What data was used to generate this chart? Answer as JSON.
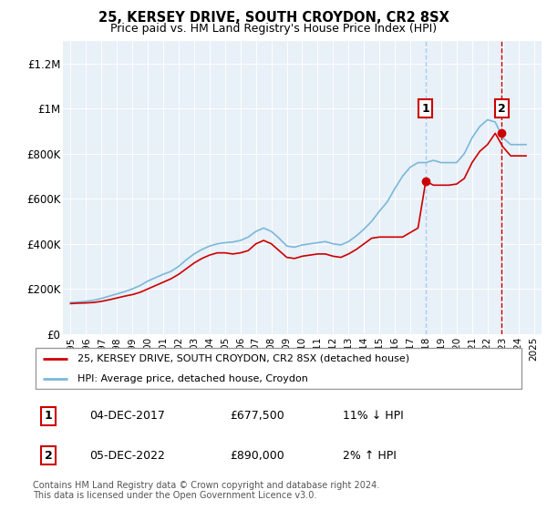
{
  "title": "25, KERSEY DRIVE, SOUTH CROYDON, CR2 8SX",
  "subtitle": "Price paid vs. HM Land Registry's House Price Index (HPI)",
  "hpi_line_color": "#7ab8d9",
  "price_line_color": "#cc0000",
  "vline1_color": "#aaccee",
  "vline2_color": "#cc0000",
  "bg_color": "#e8f0f8",
  "ylim": [
    0,
    1300000
  ],
  "yticks": [
    0,
    200000,
    400000,
    600000,
    800000,
    1000000,
    1200000
  ],
  "ytick_labels": [
    "£0",
    "£200K",
    "£400K",
    "£600K",
    "£800K",
    "£1M",
    "£1.2M"
  ],
  "legend_entries": [
    "25, KERSEY DRIVE, SOUTH CROYDON, CR2 8SX (detached house)",
    "HPI: Average price, detached house, Croydon"
  ],
  "table_rows": [
    [
      "1",
      "04-DEC-2017",
      "£677,500",
      "11% ↓ HPI"
    ],
    [
      "2",
      "05-DEC-2022",
      "£890,000",
      "2% ↑ HPI"
    ]
  ],
  "footnote": "Contains HM Land Registry data © Crown copyright and database right 2024.\nThis data is licensed under the Open Government Licence v3.0.",
  "sale1_year": 2018.0,
  "sale1_price": 677500,
  "sale2_year": 2022.92,
  "sale2_price": 890000,
  "vline1_year": 2018.0,
  "vline2_year": 2022.92,
  "label1_price": 1000000,
  "label2_price": 1000000,
  "hpi_data_years": [
    1995,
    1995.5,
    1996,
    1996.5,
    1997,
    1997.5,
    1998,
    1998.5,
    1999,
    1999.5,
    2000,
    2000.5,
    2001,
    2001.5,
    2002,
    2002.5,
    2003,
    2003.5,
    2004,
    2004.5,
    2005,
    2005.5,
    2006,
    2006.5,
    2007,
    2007.5,
    2008,
    2008.5,
    2009,
    2009.5,
    2010,
    2010.5,
    2011,
    2011.5,
    2012,
    2012.5,
    2013,
    2013.5,
    2014,
    2014.5,
    2015,
    2015.5,
    2016,
    2016.5,
    2017,
    2017.5,
    2018,
    2018.5,
    2019,
    2019.5,
    2020,
    2020.5,
    2021,
    2021.5,
    2022,
    2022.5,
    2023,
    2023.5,
    2024,
    2024.5
  ],
  "hpi_data_values": [
    140000,
    142000,
    145000,
    150000,
    158000,
    168000,
    178000,
    188000,
    200000,
    215000,
    235000,
    250000,
    265000,
    278000,
    300000,
    330000,
    355000,
    375000,
    390000,
    400000,
    405000,
    408000,
    415000,
    430000,
    455000,
    470000,
    455000,
    425000,
    390000,
    385000,
    395000,
    400000,
    405000,
    410000,
    400000,
    395000,
    410000,
    435000,
    465000,
    500000,
    545000,
    585000,
    645000,
    700000,
    740000,
    760000,
    760000,
    770000,
    760000,
    760000,
    760000,
    800000,
    870000,
    920000,
    950000,
    940000,
    870000,
    840000,
    840000,
    840000
  ],
  "price_data_years": [
    1995,
    1995.5,
    1996,
    1996.5,
    1997,
    1997.5,
    1998,
    1998.5,
    1999,
    1999.5,
    2000,
    2000.5,
    2001,
    2001.5,
    2002,
    2002.5,
    2003,
    2003.5,
    2004,
    2004.5,
    2005,
    2005.5,
    2006,
    2006.5,
    2007,
    2007.5,
    2008,
    2008.5,
    2009,
    2009.5,
    2010,
    2010.5,
    2011,
    2011.5,
    2012,
    2012.5,
    2013,
    2013.5,
    2014,
    2014.5,
    2015,
    2015.5,
    2016,
    2016.5,
    2017,
    2017.5,
    2018,
    2018.5,
    2019,
    2019.5,
    2020,
    2020.5,
    2021,
    2021.5,
    2022,
    2022.5,
    2023,
    2023.5,
    2024,
    2024.5
  ],
  "price_data_values": [
    135000,
    137000,
    138000,
    140000,
    145000,
    152000,
    160000,
    168000,
    175000,
    185000,
    200000,
    215000,
    230000,
    245000,
    265000,
    290000,
    315000,
    335000,
    350000,
    360000,
    360000,
    355000,
    360000,
    370000,
    400000,
    415000,
    400000,
    370000,
    340000,
    335000,
    345000,
    350000,
    355000,
    355000,
    345000,
    340000,
    355000,
    375000,
    400000,
    425000,
    430000,
    430000,
    430000,
    430000,
    450000,
    470000,
    677500,
    660000,
    660000,
    660000,
    665000,
    690000,
    760000,
    810000,
    840000,
    890000,
    830000,
    790000,
    790000,
    790000
  ]
}
